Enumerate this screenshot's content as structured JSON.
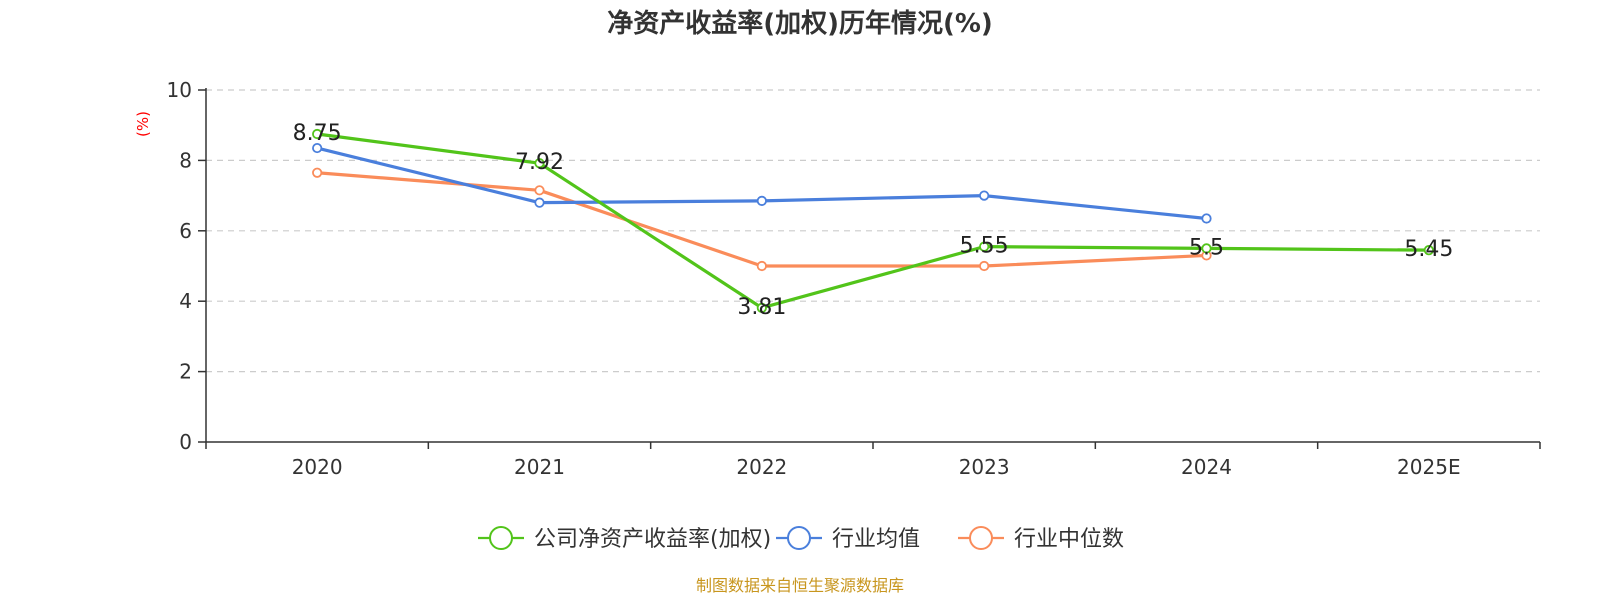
{
  "chart_data": {
    "type": "line",
    "title": "净资产收益率(加权)历年情况(%)",
    "ylabel": "(%)",
    "xlabel": "",
    "categories": [
      "2020",
      "2021",
      "2022",
      "2023",
      "2024",
      "2025E"
    ],
    "ylim": [
      0,
      10
    ],
    "yticks": [
      0,
      2,
      4,
      6,
      8,
      10
    ],
    "grid": true,
    "legend_position": "bottom-center",
    "series": [
      {
        "name": "公司净资产收益率(加权)",
        "color": "#52c41a",
        "values": [
          8.75,
          7.92,
          3.81,
          5.55,
          5.5,
          5.45
        ],
        "labels": [
          "8.75",
          "7.92",
          "3.81",
          "5.55",
          "5.5",
          "5.45"
        ]
      },
      {
        "name": "行业均值",
        "color": "#4a7fdc",
        "values": [
          8.35,
          6.8,
          6.85,
          7.0,
          6.35,
          null
        ]
      },
      {
        "name": "行业中位数",
        "color": "#fa8c5a",
        "values": [
          7.65,
          7.15,
          5.0,
          5.0,
          5.3,
          null
        ]
      }
    ],
    "source": "制图数据来自恒生聚源数据库",
    "ylabel_color": "#ff0000",
    "source_color": "#c8961e"
  }
}
